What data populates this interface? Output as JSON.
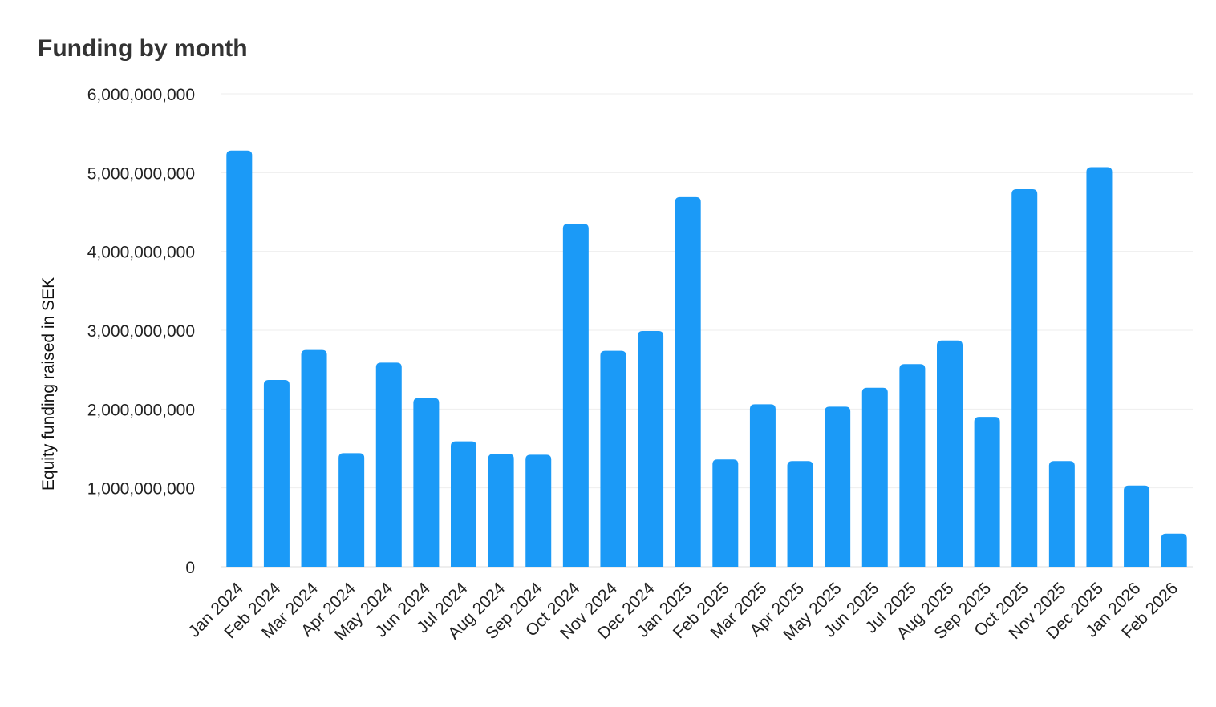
{
  "chart_data": {
    "type": "bar",
    "title": "Funding by month",
    "xlabel": "",
    "ylabel": "Equity funding raised in SEK",
    "ylim": [
      0,
      6000000000
    ],
    "yticks": [
      0,
      1000000000,
      2000000000,
      3000000000,
      4000000000,
      5000000000,
      6000000000
    ],
    "ytick_labels": [
      "0",
      "1,000,000,000",
      "2,000,000,000",
      "3,000,000,000",
      "4,000,000,000",
      "5,000,000,000",
      "6,000,000,000"
    ],
    "grid": true,
    "bar_color": "#1b9af7",
    "categories": [
      "Jan 2024",
      "Feb 2024",
      "Mar 2024",
      "Apr 2024",
      "May 2024",
      "Jun 2024",
      "Jul 2024",
      "Aug 2024",
      "Sep 2024",
      "Oct 2024",
      "Nov 2024",
      "Dec 2024",
      "Jan 2025",
      "Feb 2025",
      "Mar 2025",
      "Apr 2025",
      "May 2025",
      "Jun 2025",
      "Jul 2025",
      "Aug 2025",
      "Sep 2025",
      "Oct 2025",
      "Nov 2025",
      "Dec 2025",
      "Jan 2026",
      "Feb 2026"
    ],
    "values": [
      5280000000,
      2370000000,
      2750000000,
      1440000000,
      2590000000,
      2140000000,
      1590000000,
      1430000000,
      1420000000,
      4350000000,
      2740000000,
      2990000000,
      4690000000,
      1360000000,
      2060000000,
      1340000000,
      2030000000,
      2270000000,
      2570000000,
      2870000000,
      1900000000,
      4790000000,
      1340000000,
      5070000000,
      1030000000,
      420000000
    ]
  }
}
